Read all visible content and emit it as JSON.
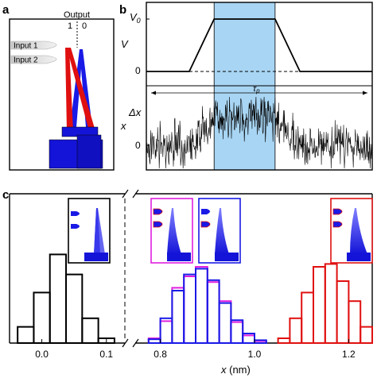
{
  "panels": {
    "a": {
      "label": "a",
      "output_label": "Output",
      "output_1": "1",
      "output_0": "0",
      "input_1": "Input 1",
      "input_2": "Input 2"
    },
    "b": {
      "label": "b",
      "v_axis": "V",
      "v0_label": "V",
      "v0_sub": "0",
      "v_zero_tick": "0",
      "tau_label": "τ",
      "tau_sub": "p",
      "x_axis": "x",
      "dx_label": "Δx",
      "x_zero_tick": "0"
    },
    "c": {
      "label": "c",
      "xlabel_var": "x",
      "xlabel_unit": " (nm)",
      "left_ticks": [
        "0.0",
        "0.1"
      ],
      "right_ticks": [
        "0.8",
        "1.0",
        "1.2"
      ]
    }
  },
  "colors": {
    "input0_tip": "#1a1ae6",
    "input1_tip": "#e01010",
    "mixed": "#e020e0",
    "blocks": "#1414d8",
    "shade": "#9fd0f2",
    "hist_black": "#000000"
  },
  "chart_data": [
    {
      "type": "line",
      "panel": "b-top",
      "ylabel": "V",
      "x": [
        0,
        0.19,
        0.3,
        0.57,
        0.68,
        1
      ],
      "values": [
        0,
        0,
        1,
        1,
        0,
        0
      ],
      "ylim": [
        0,
        1
      ],
      "shaded_interval": [
        0.3,
        0.57
      ]
    },
    {
      "type": "line",
      "panel": "b-bottom",
      "ylabel": "x",
      "x": [
        0,
        0.2,
        0.3,
        0.57,
        0.68,
        1
      ],
      "values": [
        0,
        0,
        1,
        1,
        0,
        0
      ],
      "shaded_interval": [
        0.3,
        0.57
      ],
      "noise_amplitude": 0.6
    },
    {
      "type": "bar",
      "panel": "c",
      "xlabel": "x (nm)",
      "bin_width": 0.025,
      "xlim_left": [
        -0.05,
        0.12
      ],
      "xlim_right": [
        0.75,
        1.25
      ],
      "series": [
        {
          "color": "#000000",
          "bins_left": [
            -0.0375,
            -0.0125,
            0.0125,
            0.0375,
            0.0625,
            0.0875
          ],
          "values": [
            0.17,
            0.53,
            0.93,
            0.72,
            0.26,
            0.05
          ]
        },
        {
          "color": "#e020e0",
          "bins_left": [
            0.775,
            0.8,
            0.825,
            0.85,
            0.875,
            0.9,
            0.925,
            0.95,
            0.975,
            1.0
          ],
          "values": [
            0.05,
            0.23,
            0.58,
            0.7,
            0.8,
            0.64,
            0.44,
            0.22,
            0.08,
            0.02
          ]
        },
        {
          "color": "#1a1ae6",
          "bins_left": [
            0.775,
            0.8,
            0.825,
            0.85,
            0.875,
            0.9,
            0.925,
            0.95,
            0.975,
            1.0
          ],
          "values": [
            0.04,
            0.26,
            0.55,
            0.72,
            0.78,
            0.66,
            0.42,
            0.24,
            0.1,
            0.03
          ]
        },
        {
          "color": "#e01010",
          "bins_left": [
            1.05,
            1.075,
            1.1,
            1.125,
            1.15,
            1.175,
            1.2,
            1.225
          ],
          "values": [
            0.05,
            0.26,
            0.53,
            0.8,
            0.83,
            0.65,
            0.44,
            0.17
          ]
        }
      ]
    }
  ]
}
